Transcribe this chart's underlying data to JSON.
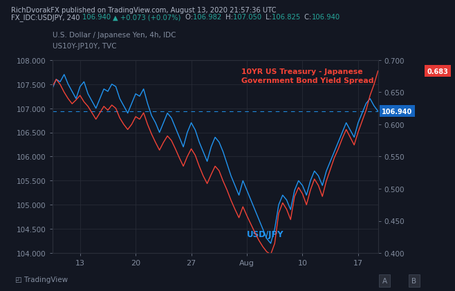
{
  "bg_color": "#131722",
  "grid_color": "#2a2e39",
  "title_line1": "RichDvorakFX published on TradingView.com, August 13, 2020 21:57:36 UTC",
  "subtitle_line1": "U.S. Dollar / Japanese Yen, 4h, IDC",
  "subtitle_line2": "US10Y-JP10Y, TVC",
  "label_usdjpy": "USD/JPY",
  "label_spread": "10YR US Treasury - Japanese\nGovernment Bond Yield Spread",
  "color_usdjpy": "#2196f3",
  "color_spread": "#f44336",
  "color_hline": "#2196f3",
  "price_tag_color": "#1565c0",
  "spread_tag_color": "#e53935",
  "price_tag_value": "106.940",
  "spread_tag_value": "0.683",
  "ylim_left": [
    104.0,
    108.0
  ],
  "ylim_right": [
    0.4,
    0.7
  ],
  "xtick_labels": [
    "13",
    "20",
    "27",
    "Aug",
    "10",
    "17"
  ],
  "xtick_positions": [
    7,
    21,
    35,
    49,
    63,
    77
  ],
  "ytick_left": [
    104.0,
    104.5,
    105.0,
    105.5,
    106.0,
    106.5,
    107.0,
    107.5,
    108.0
  ],
  "ytick_right": [
    0.4,
    0.45,
    0.5,
    0.55,
    0.6,
    0.65,
    0.7
  ],
  "hline_y": 106.94,
  "usdjpy": [
    107.4,
    107.6,
    107.55,
    107.7,
    107.5,
    107.35,
    107.2,
    107.45,
    107.55,
    107.3,
    107.15,
    107.0,
    107.2,
    107.4,
    107.35,
    107.5,
    107.45,
    107.2,
    107.05,
    106.9,
    107.1,
    107.3,
    107.25,
    107.4,
    107.1,
    106.85,
    106.7,
    106.5,
    106.7,
    106.9,
    106.8,
    106.6,
    106.4,
    106.2,
    106.5,
    106.7,
    106.55,
    106.3,
    106.1,
    105.9,
    106.2,
    106.4,
    106.3,
    106.1,
    105.85,
    105.6,
    105.4,
    105.2,
    105.5,
    105.3,
    105.1,
    104.9,
    104.7,
    104.5,
    104.3,
    104.2,
    104.5,
    105.0,
    105.2,
    105.1,
    104.9,
    105.3,
    105.5,
    105.4,
    105.2,
    105.5,
    105.7,
    105.6,
    105.4,
    105.7,
    105.9,
    106.1,
    106.3,
    106.5,
    106.7,
    106.55,
    106.4,
    106.7,
    106.9,
    107.1,
    107.2,
    107.05,
    106.94
  ],
  "spread": [
    0.658,
    0.67,
    0.662,
    0.65,
    0.64,
    0.632,
    0.638,
    0.645,
    0.635,
    0.628,
    0.618,
    0.608,
    0.618,
    0.628,
    0.622,
    0.63,
    0.625,
    0.61,
    0.6,
    0.592,
    0.6,
    0.612,
    0.608,
    0.618,
    0.6,
    0.585,
    0.572,
    0.56,
    0.572,
    0.582,
    0.575,
    0.562,
    0.548,
    0.535,
    0.55,
    0.562,
    0.552,
    0.535,
    0.52,
    0.508,
    0.522,
    0.535,
    0.528,
    0.512,
    0.498,
    0.482,
    0.468,
    0.455,
    0.472,
    0.458,
    0.445,
    0.432,
    0.42,
    0.41,
    0.402,
    0.398,
    0.415,
    0.462,
    0.478,
    0.468,
    0.452,
    0.488,
    0.502,
    0.492,
    0.475,
    0.498,
    0.515,
    0.505,
    0.488,
    0.512,
    0.53,
    0.548,
    0.562,
    0.578,
    0.592,
    0.58,
    0.568,
    0.588,
    0.605,
    0.622,
    0.645,
    0.662,
    0.683
  ]
}
